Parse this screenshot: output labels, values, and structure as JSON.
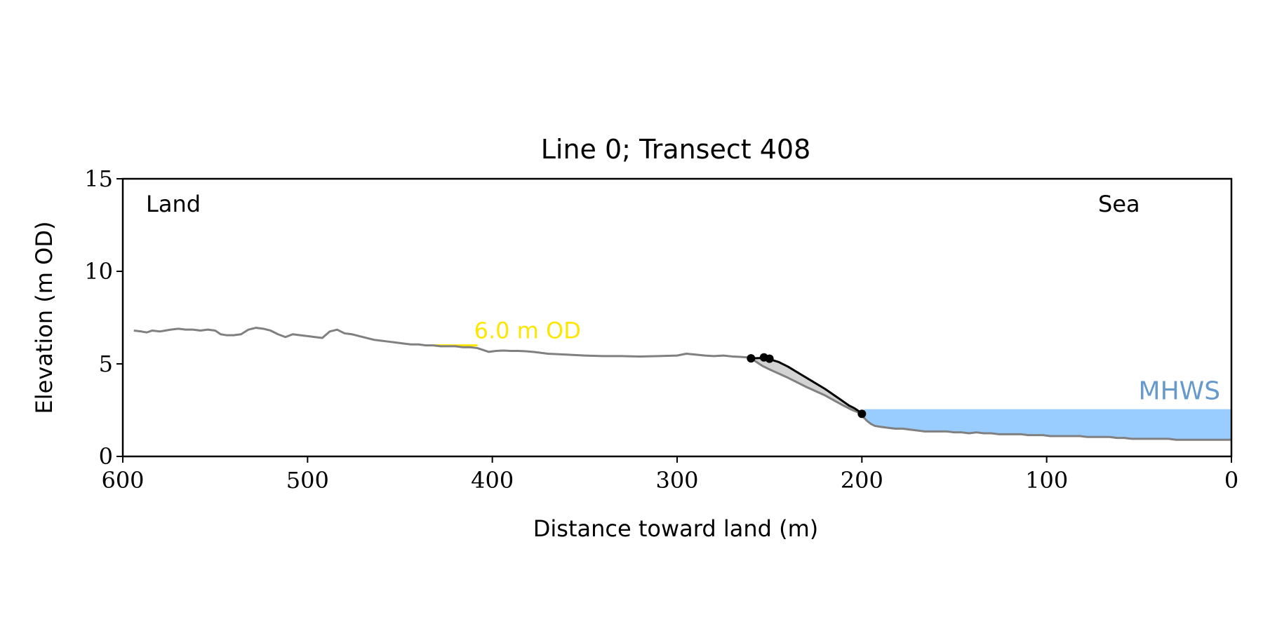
{
  "chart_data": {
    "type": "line",
    "title": "Line 0; Transect 408",
    "xlabel": "Distance toward land (m)",
    "ylabel": "Elevation (m OD)",
    "xlim": [
      600,
      0
    ],
    "ylim": [
      0,
      15
    ],
    "x_ticks": [
      600,
      500,
      400,
      300,
      200,
      100,
      0
    ],
    "y_ticks": [
      0,
      5,
      10,
      15
    ],
    "x_tick_labels": [
      "600",
      "500",
      "400",
      "300",
      "200",
      "100",
      "0"
    ],
    "y_tick_labels": [
      "0",
      "5",
      "10",
      "15"
    ],
    "grid": false,
    "annotations": {
      "land": "Land",
      "sea": "Sea",
      "level_label": "6.0 m OD",
      "mhws_label": "MHWS"
    },
    "colors": {
      "profile": "#808080",
      "cliff": "#000000",
      "cliff_fill": "#d3d3d3",
      "mhws_fill": "#99ccff",
      "mhws_text": "#6699cc",
      "level": "#ffe600"
    },
    "mhws": {
      "elevation": 2.55,
      "x_start": 199,
      "x_end": 0
    },
    "level_line": {
      "elevation": 6.0,
      "x_start": 432,
      "x_end": 408
    },
    "series": [
      {
        "x": [
          594,
          590,
          587,
          584,
          580,
          577,
          574,
          570,
          566,
          562,
          558,
          554,
          550,
          547,
          544,
          540,
          536,
          532,
          528,
          524,
          520,
          516,
          512,
          508,
          504,
          500,
          496,
          492,
          488,
          484,
          480,
          476,
          472,
          468,
          464,
          460,
          456,
          452,
          448,
          444,
          440,
          436,
          432,
          428,
          424,
          420,
          416,
          412,
          408,
          405,
          402,
          398,
          394,
          390,
          386,
          382,
          378,
          374,
          370,
          360,
          350,
          340,
          330,
          320,
          310,
          300,
          295,
          290,
          285,
          280,
          275,
          270,
          266,
          262,
          260,
          257,
          254,
          250,
          240,
          230,
          220,
          210,
          205,
          200,
          199,
          197,
          195,
          193,
          190,
          186,
          182,
          178,
          174,
          170,
          166,
          162,
          158,
          154,
          150,
          146,
          142,
          138,
          134,
          130,
          126,
          122,
          118,
          114,
          110,
          106,
          102,
          98,
          94,
          90,
          86,
          82,
          78,
          74,
          70,
          66,
          62,
          58,
          54,
          50,
          46,
          42,
          38,
          34,
          30,
          26,
          22,
          18,
          14,
          10,
          6,
          2,
          0
        ],
        "y": [
          6.8,
          6.75,
          6.7,
          6.8,
          6.75,
          6.8,
          6.85,
          6.9,
          6.85,
          6.85,
          6.8,
          6.85,
          6.8,
          6.6,
          6.55,
          6.55,
          6.6,
          6.85,
          6.95,
          6.9,
          6.8,
          6.6,
          6.45,
          6.6,
          6.55,
          6.5,
          6.45,
          6.4,
          6.75,
          6.85,
          6.65,
          6.6,
          6.5,
          6.4,
          6.3,
          6.25,
          6.2,
          6.15,
          6.1,
          6.05,
          6.05,
          6.0,
          6.0,
          5.95,
          5.95,
          5.95,
          5.9,
          5.9,
          5.85,
          5.75,
          5.65,
          5.7,
          5.72,
          5.7,
          5.7,
          5.68,
          5.65,
          5.6,
          5.55,
          5.5,
          5.45,
          5.42,
          5.42,
          5.4,
          5.42,
          5.45,
          5.55,
          5.5,
          5.45,
          5.42,
          5.45,
          5.4,
          5.38,
          5.35,
          5.3,
          5.1,
          4.9,
          4.7,
          4.25,
          3.75,
          3.3,
          2.75,
          2.5,
          2.3,
          2.1,
          1.9,
          1.75,
          1.65,
          1.6,
          1.55,
          1.5,
          1.5,
          1.45,
          1.4,
          1.35,
          1.35,
          1.35,
          1.35,
          1.3,
          1.3,
          1.25,
          1.3,
          1.25,
          1.25,
          1.2,
          1.2,
          1.2,
          1.2,
          1.15,
          1.15,
          1.15,
          1.1,
          1.1,
          1.1,
          1.1,
          1.1,
          1.05,
          1.05,
          1.05,
          1.05,
          1.0,
          1.0,
          0.95,
          0.95,
          0.95,
          0.95,
          0.95,
          0.95,
          0.9,
          0.9,
          0.9,
          0.9,
          0.9,
          0.9,
          0.9,
          0.9,
          0.9
        ]
      },
      {
        "x": [
          260,
          253,
          250,
          245,
          240,
          230,
          220,
          212,
          207,
          204,
          201,
          200
        ],
        "y": [
          5.3,
          5.32,
          5.25,
          5.1,
          4.85,
          4.25,
          3.65,
          3.1,
          2.75,
          2.6,
          2.4,
          2.3
        ]
      }
    ],
    "points": [
      {
        "x": 260,
        "y": 5.3
      },
      {
        "x": 253,
        "y": 5.35
      },
      {
        "x": 250,
        "y": 5.28
      },
      {
        "x": 200,
        "y": 2.3
      }
    ]
  }
}
